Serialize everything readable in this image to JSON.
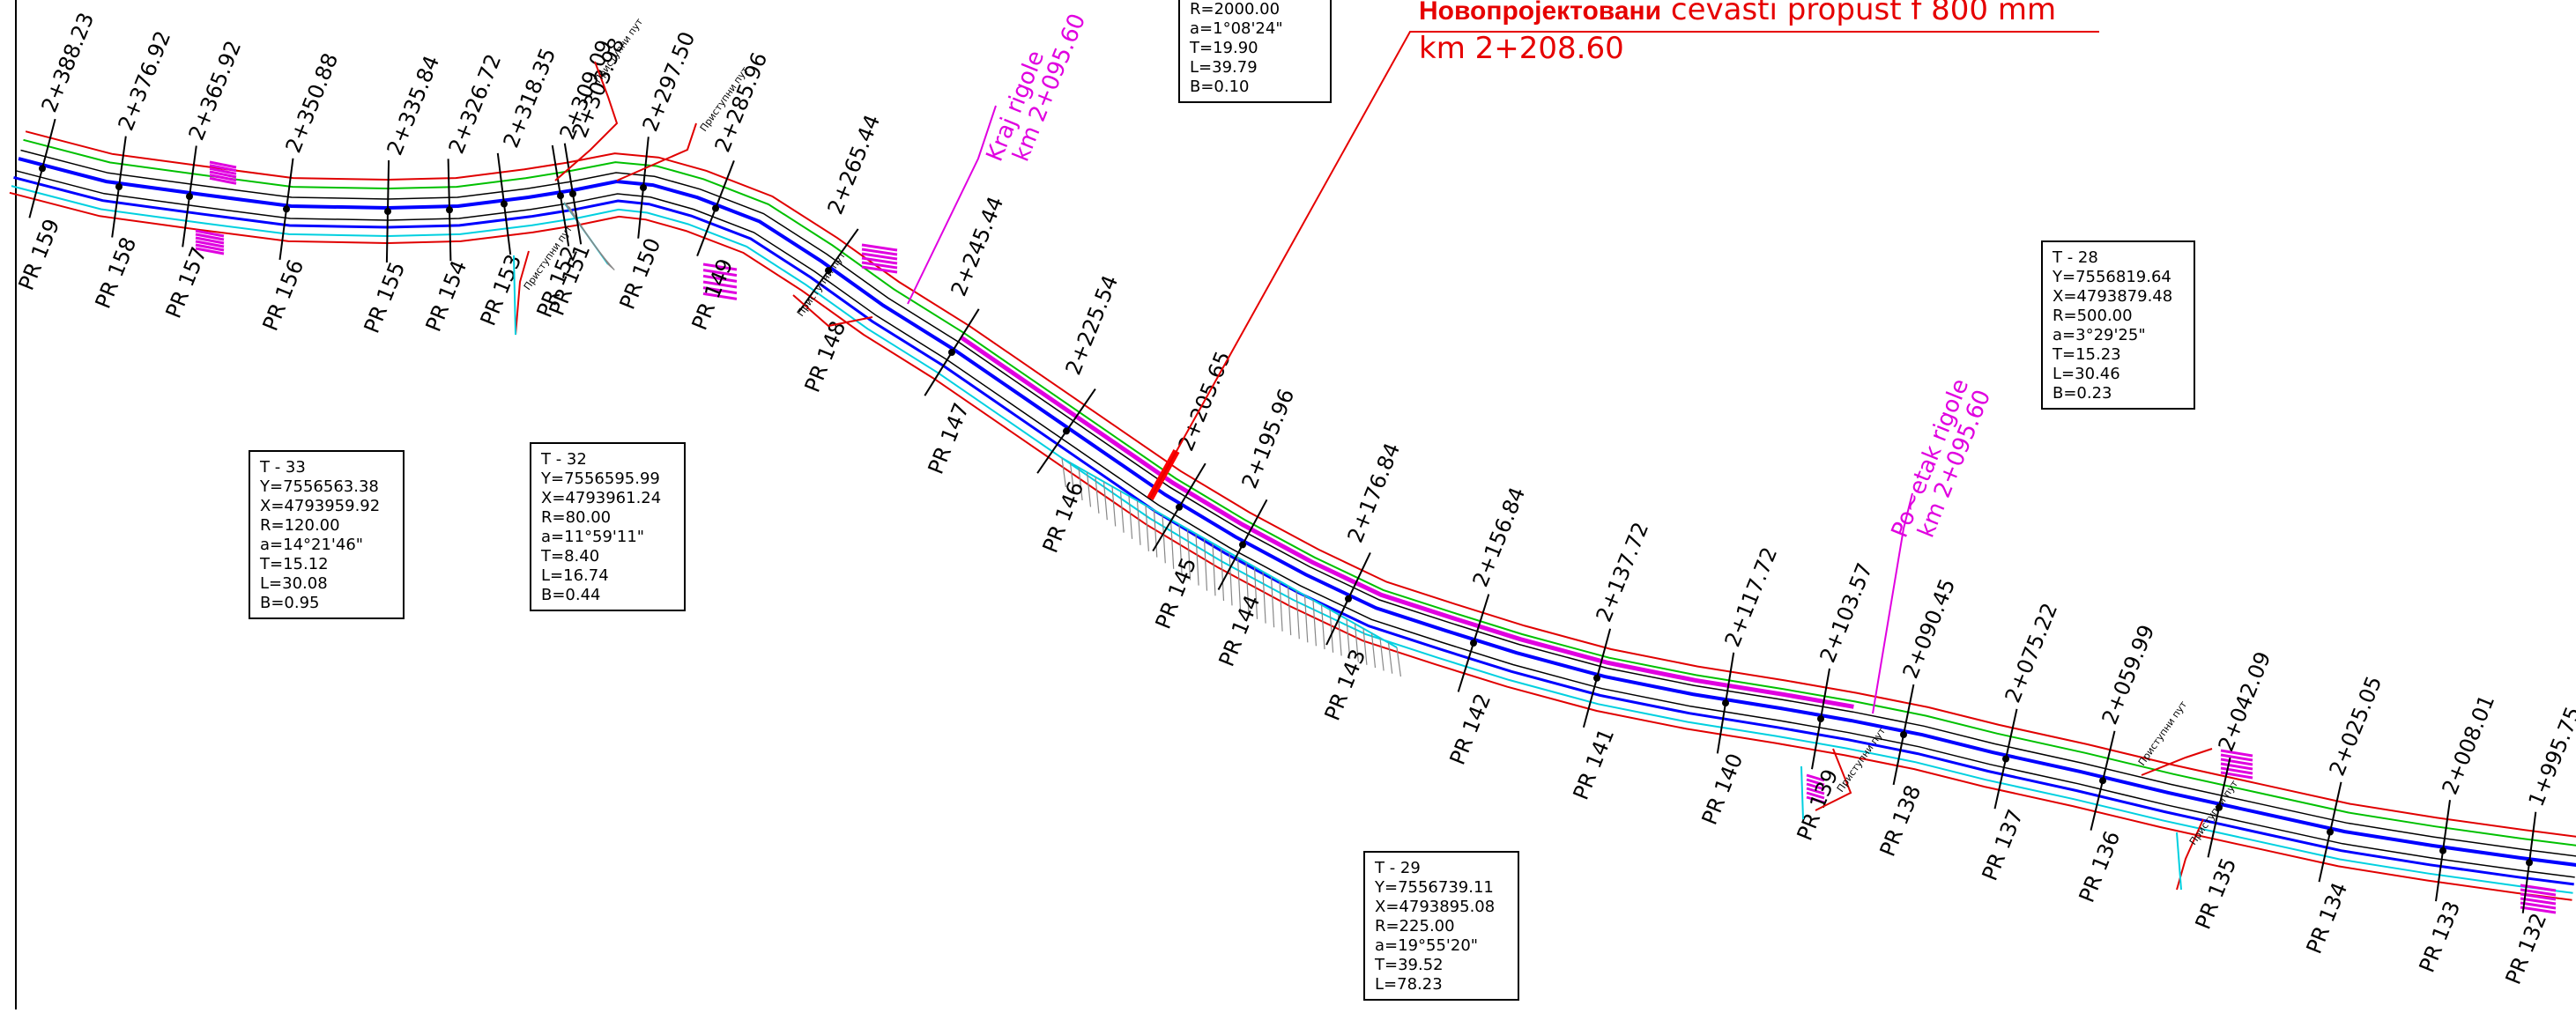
{
  "title": {
    "prefix": "Новопројектовани",
    "rest": " cevasti propust f 800 mm",
    "km": "km  2+208.60",
    "prefix_color": "#e60000",
    "line_color": "#e60000"
  },
  "stations": [
    "2+388.23",
    "2+376.92",
    "2+365.92",
    "2+350.88",
    "2+335.84",
    "2+326.72",
    "2+318.35",
    "2+309.09",
    "2+303.98",
    "2+297.50",
    "2+285.96",
    "2+265.44",
    "2+245.44",
    "2+225.54",
    "2+205.65",
    "2+195.96",
    "2+176.84",
    "2+156.84",
    "2+137.72",
    "2+117.72",
    "2+103.57",
    "2+090.45",
    "2+075.22",
    "2+059.99",
    "2+042.09",
    "2+025.05",
    "2+008.01",
    "1+995.75"
  ],
  "profiles": [
    "PR 159",
    "PR 158",
    "PR 157",
    "PR 156",
    "PR 155",
    "PR 154",
    "PR 153",
    "PR 152",
    "PR 151",
    "PR 150",
    "PR 149",
    "PR 148",
    "PR 147",
    "PR 146",
    "PR 145",
    "PR 144",
    "PR 143",
    "PR 142",
    "PR 141",
    "PR 140",
    "PR 139",
    "PR 138",
    "PR 137",
    "PR 136",
    "PR 135",
    "PR 134",
    "PR 133",
    "PR 132"
  ],
  "access_road": "Приступни пут",
  "magenta_labels": {
    "end": [
      "Kraj rigole",
      "km 2+095.60"
    ],
    "start": [
      "Po~etak rigole",
      "km 2+095.60"
    ]
  },
  "curves": {
    "t_top": [
      "R=2000.00",
      "a=1°08'24\"",
      "T=19.90",
      "L=39.79",
      "B=0.10"
    ],
    "t33": [
      "T - 33",
      "Y=7556563.38",
      "X=4793959.92",
      "R=120.00",
      "a=14°21'46\"",
      "T=15.12",
      "L=30.08",
      "B=0.95"
    ],
    "t32": [
      "T - 32",
      "Y=7556595.99",
      "X=4793961.24",
      "R=80.00",
      "a=11°59'11\"",
      "T=8.40",
      "L=16.74",
      "B=0.44"
    ],
    "t28": [
      "T - 28",
      "Y=7556819.64",
      "X=4793879.48",
      "R=500.00",
      "a=3°29'25\"",
      "T=15.23",
      "L=30.46",
      "B=0.23"
    ],
    "t29": [
      "T - 29",
      "Y=7556739.11",
      "X=4793895.08",
      "R=225.00",
      "a=19°55'20\"",
      "T=39.52",
      "L=78.23"
    ]
  },
  "colors": {
    "axis": "#0000ff",
    "edge": "#e00000",
    "shoulder": "#00c000",
    "ditch": "#00d0e0",
    "rigole": "#e000e0",
    "hatch": "#888888"
  }
}
